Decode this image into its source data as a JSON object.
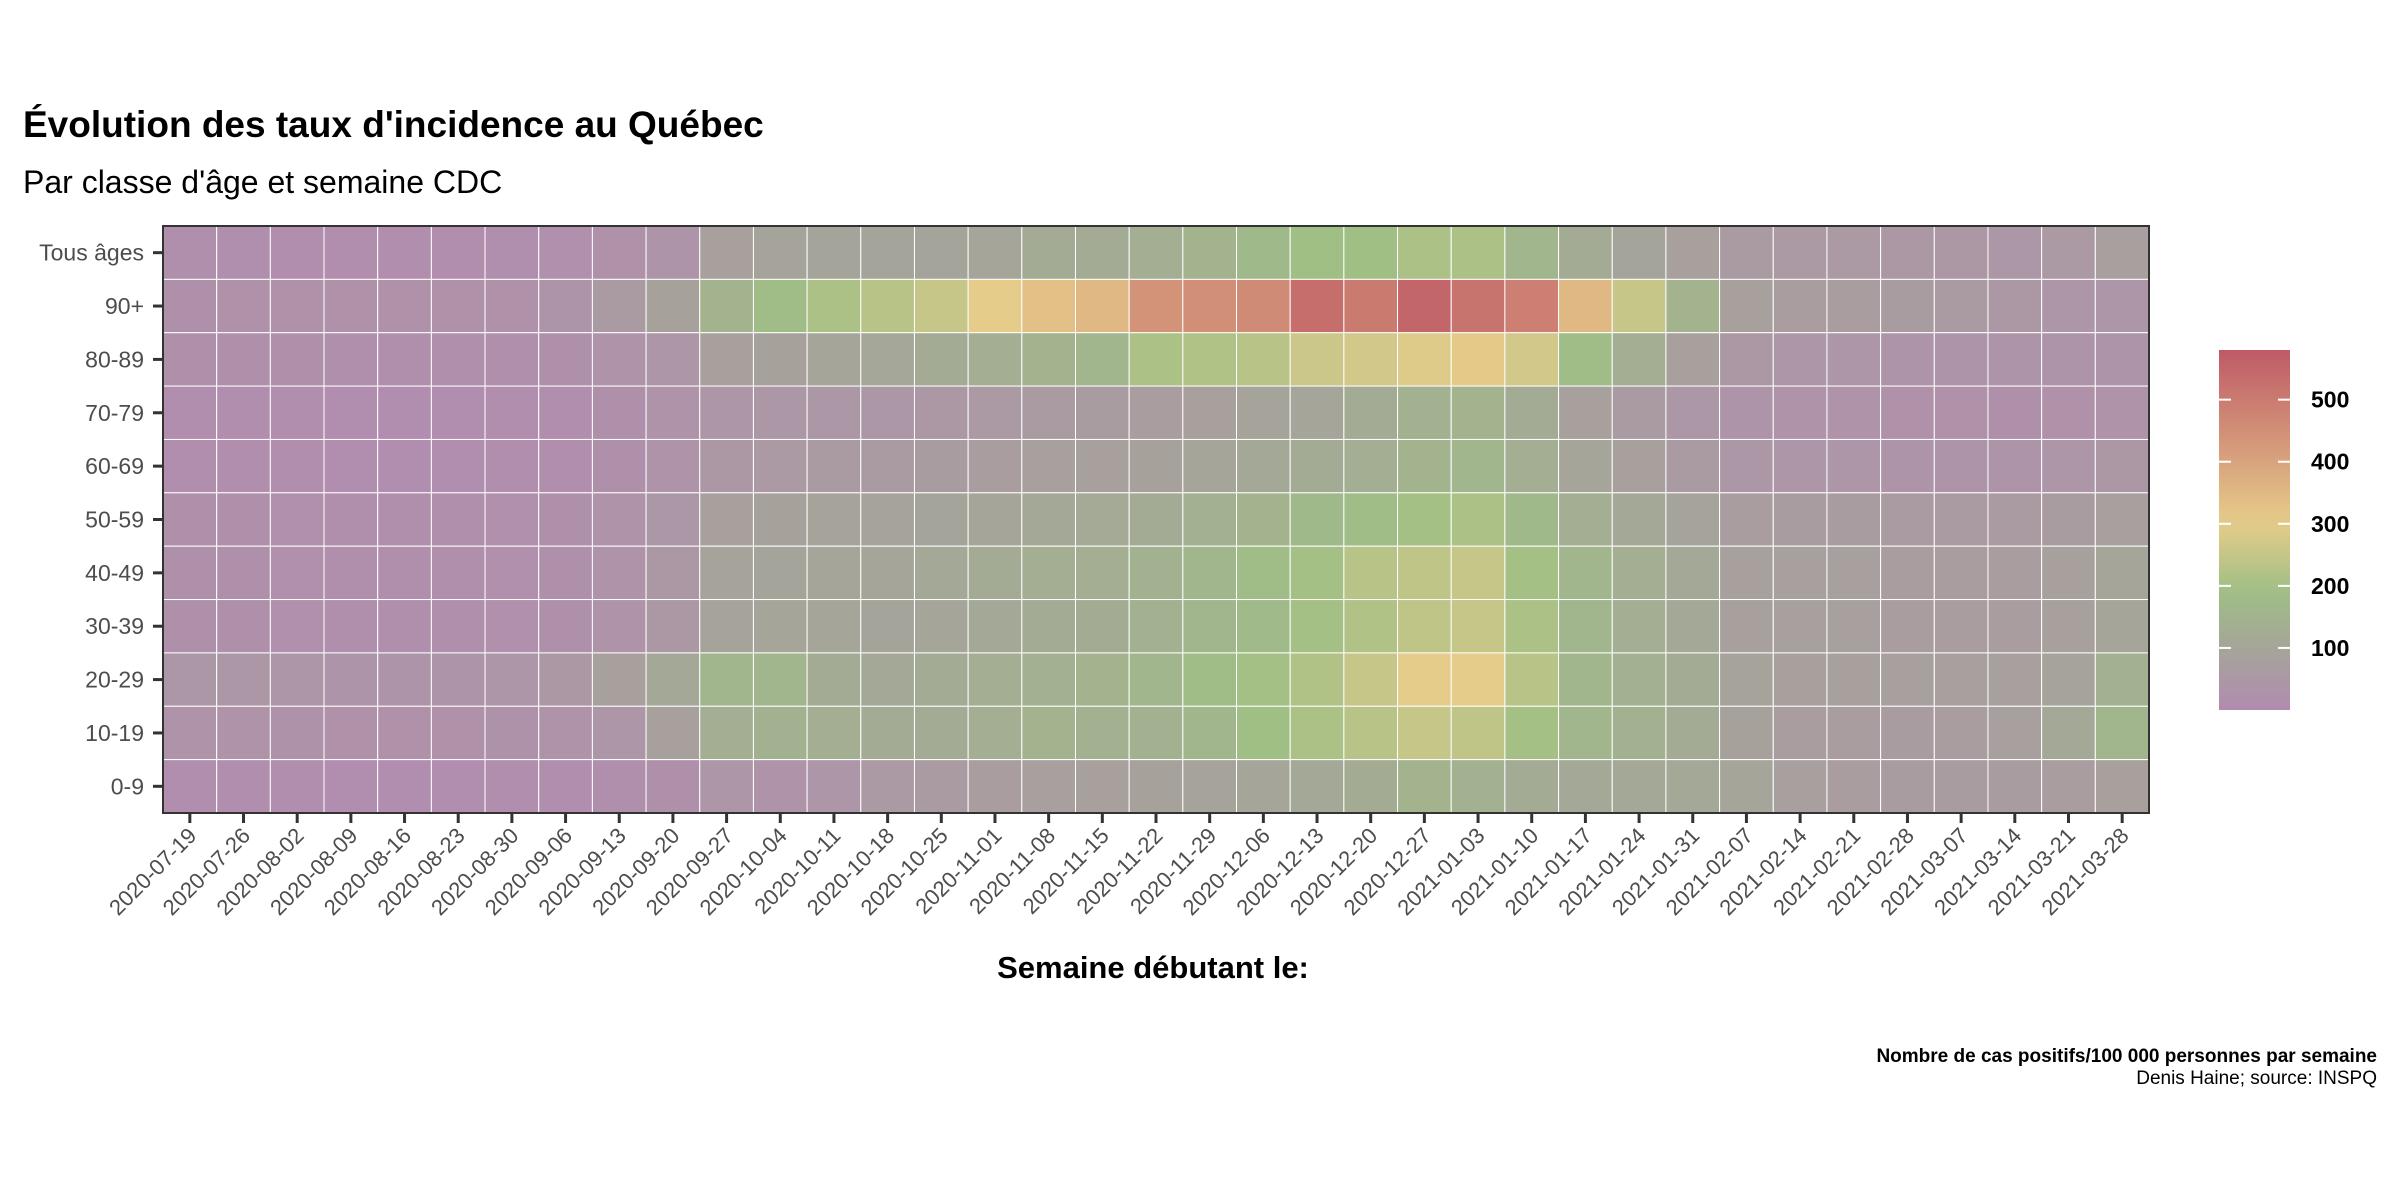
{
  "colors": {
    "scale_low": "#b28bb0",
    "scale_mid_low": "#a5a599",
    "scale_mid": "#9fbf85",
    "scale_mid_high": "#e6cc8a",
    "scale_high": "#bf5a66",
    "grid": "#ffffff",
    "panel_border": "#333333"
  },
  "chart_data": {
    "type": "heatmap",
    "title": "Évolution des taux d'incidence au Québec",
    "subtitle": "Par classe d'âge et semaine CDC",
    "xlabel": "Semaine débutant le:",
    "ylabel": "",
    "caption_line1": "Nombre de cas positifs/100 000 personnes par semaine",
    "caption_line2": "Denis Haine; source: INSPQ",
    "legend_position": "right",
    "legend_breaks": [
      100,
      200,
      300,
      400,
      500
    ],
    "color_range": [
      0,
      580
    ],
    "x": [
      "2020-07-19",
      "2020-07-26",
      "2020-08-02",
      "2020-08-09",
      "2020-08-16",
      "2020-08-23",
      "2020-08-30",
      "2020-09-06",
      "2020-09-13",
      "2020-09-20",
      "2020-09-27",
      "2020-10-04",
      "2020-10-11",
      "2020-10-18",
      "2020-10-25",
      "2020-11-01",
      "2020-11-08",
      "2020-11-15",
      "2020-11-22",
      "2020-11-29",
      "2020-12-06",
      "2020-12-13",
      "2020-12-20",
      "2020-12-27",
      "2021-01-03",
      "2021-01-10",
      "2021-01-17",
      "2021-01-24",
      "2021-01-31",
      "2021-02-07",
      "2021-02-14",
      "2021-02-21",
      "2021-02-28",
      "2021-03-07",
      "2021-03-14",
      "2021-03-21",
      "2021-03-28"
    ],
    "y": [
      "Tous âges",
      "90+",
      "80-89",
      "70-79",
      "60-69",
      "50-59",
      "40-49",
      "30-39",
      "20-29",
      "10-19",
      "0-9"
    ],
    "values": [
      [
        15,
        12,
        10,
        10,
        10,
        10,
        12,
        18,
        25,
        35,
        80,
        90,
        95,
        95,
        95,
        100,
        120,
        120,
        130,
        150,
        170,
        190,
        190,
        210,
        210,
        160,
        120,
        95,
        80,
        60,
        55,
        55,
        50,
        50,
        45,
        55,
        75
      ],
      [
        20,
        25,
        25,
        25,
        25,
        25,
        25,
        35,
        60,
        85,
        150,
        180,
        210,
        230,
        250,
        300,
        330,
        350,
        440,
        450,
        460,
        530,
        500,
        550,
        520,
        490,
        350,
        250,
        150,
        80,
        70,
        70,
        65,
        60,
        50,
        40,
        40
      ],
      [
        20,
        20,
        20,
        15,
        15,
        15,
        15,
        20,
        30,
        40,
        80,
        85,
        100,
        105,
        120,
        130,
        150,
        160,
        210,
        220,
        230,
        260,
        270,
        290,
        310,
        270,
        180,
        130,
        80,
        50,
        40,
        40,
        35,
        35,
        35,
        35,
        35
      ],
      [
        10,
        8,
        8,
        6,
        6,
        6,
        8,
        10,
        20,
        30,
        40,
        45,
        45,
        45,
        50,
        55,
        60,
        65,
        70,
        80,
        90,
        100,
        120,
        140,
        150,
        120,
        80,
        60,
        45,
        35,
        30,
        30,
        25,
        25,
        20,
        25,
        30
      ],
      [
        10,
        10,
        8,
        6,
        6,
        6,
        8,
        10,
        20,
        30,
        50,
        55,
        60,
        60,
        65,
        70,
        75,
        80,
        85,
        100,
        110,
        120,
        130,
        150,
        160,
        130,
        100,
        80,
        60,
        45,
        40,
        40,
        35,
        35,
        35,
        40,
        50
      ],
      [
        20,
        20,
        18,
        15,
        15,
        15,
        18,
        20,
        30,
        45,
        80,
        85,
        90,
        90,
        95,
        100,
        110,
        115,
        120,
        140,
        150,
        170,
        180,
        200,
        210,
        170,
        130,
        110,
        90,
        70,
        65,
        65,
        60,
        60,
        60,
        65,
        75
      ],
      [
        20,
        20,
        18,
        15,
        15,
        15,
        18,
        20,
        30,
        50,
        90,
        95,
        100,
        100,
        110,
        120,
        130,
        130,
        140,
        160,
        180,
        200,
        230,
        240,
        250,
        200,
        160,
        130,
        110,
        80,
        75,
        75,
        70,
        70,
        70,
        80,
        100
      ],
      [
        20,
        20,
        18,
        15,
        15,
        15,
        18,
        20,
        30,
        50,
        90,
        100,
        100,
        95,
        100,
        110,
        120,
        125,
        140,
        160,
        175,
        200,
        220,
        240,
        250,
        210,
        160,
        130,
        110,
        80,
        75,
        75,
        70,
        70,
        70,
        80,
        100
      ],
      [
        45,
        45,
        40,
        35,
        35,
        35,
        40,
        50,
        80,
        110,
        160,
        160,
        120,
        110,
        120,
        130,
        140,
        150,
        160,
        180,
        200,
        220,
        250,
        300,
        300,
        230,
        160,
        140,
        120,
        90,
        80,
        80,
        75,
        75,
        75,
        90,
        140
      ],
      [
        30,
        30,
        28,
        25,
        25,
        25,
        28,
        30,
        40,
        80,
        130,
        140,
        130,
        120,
        120,
        130,
        150,
        140,
        140,
        160,
        190,
        210,
        230,
        250,
        240,
        200,
        160,
        140,
        120,
        85,
        70,
        70,
        65,
        70,
        75,
        110,
        160
      ],
      [
        10,
        10,
        8,
        6,
        6,
        6,
        8,
        10,
        15,
        20,
        40,
        30,
        40,
        55,
        60,
        70,
        75,
        80,
        85,
        90,
        100,
        110,
        125,
        150,
        140,
        120,
        110,
        110,
        110,
        100,
        75,
        70,
        65,
        65,
        65,
        70,
        80
      ]
    ]
  }
}
